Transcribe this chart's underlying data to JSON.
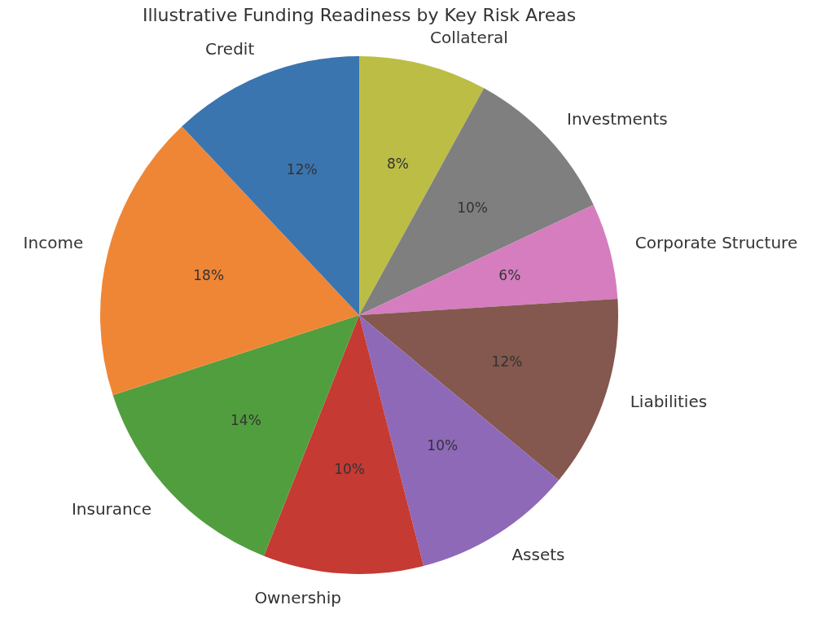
{
  "chart_data": {
    "type": "pie",
    "title": "Illustrative Funding Readiness by Key Risk Areas",
    "categories": [
      "Collateral",
      "Investments",
      "Corporate Structure",
      "Liabilities",
      "Assets",
      "Ownership",
      "Insurance",
      "Income",
      "Credit"
    ],
    "values": [
      8,
      10,
      6,
      12,
      10,
      10,
      14,
      18,
      12
    ],
    "value_labels": [
      "8%",
      "10%",
      "6%",
      "12%",
      "10%",
      "10%",
      "14%",
      "18%",
      "12%"
    ],
    "colors": [
      "#bcbd45",
      "#7f7f7f",
      "#d57dbf",
      "#84584e",
      "#8d69b8",
      "#c53a32",
      "#519e3e",
      "#ef8636",
      "#3a75af"
    ],
    "legend": false
  }
}
